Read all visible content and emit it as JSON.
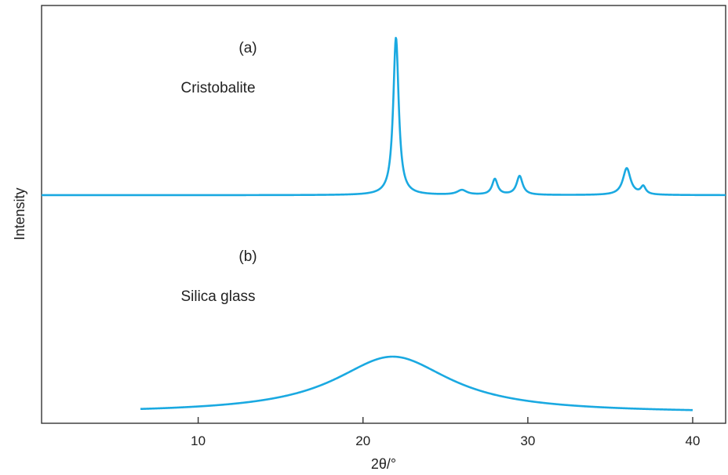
{
  "chart_data": {
    "type": "line",
    "xlabel": "2θ/°",
    "ylabel": "Intensity",
    "xlim": [
      0.5,
      42
    ],
    "x_ticks": [
      10,
      20,
      30,
      40
    ],
    "y_ticks": [],
    "grid": false,
    "legend": "none",
    "annotations": [
      {
        "label": "(a)",
        "text": "Cristobalite"
      },
      {
        "label": "(b)",
        "text": "Silica glass"
      }
    ],
    "series": [
      {
        "color": "#1aa9e1",
        "x_range": [
          0.5,
          42
        ],
        "baseline": 0,
        "peaks": [
          {
            "x": 22.0,
            "height": 1.0,
            "width": 0.2
          },
          {
            "x": 26.0,
            "height": 0.03,
            "width": 0.35
          },
          {
            "x": 28.0,
            "height": 0.1,
            "width": 0.2
          },
          {
            "x": 29.5,
            "height": 0.12,
            "width": 0.22
          },
          {
            "x": 36.0,
            "height": 0.17,
            "width": 0.28
          },
          {
            "x": 37.0,
            "height": 0.05,
            "width": 0.18
          }
        ]
      },
      {
        "color": "#1aa9e1",
        "x_range": [
          6.5,
          40
        ],
        "baseline": 0,
        "peaks": [
          {
            "x": 21.8,
            "height": 1.0,
            "width": 4.3
          }
        ]
      }
    ]
  }
}
